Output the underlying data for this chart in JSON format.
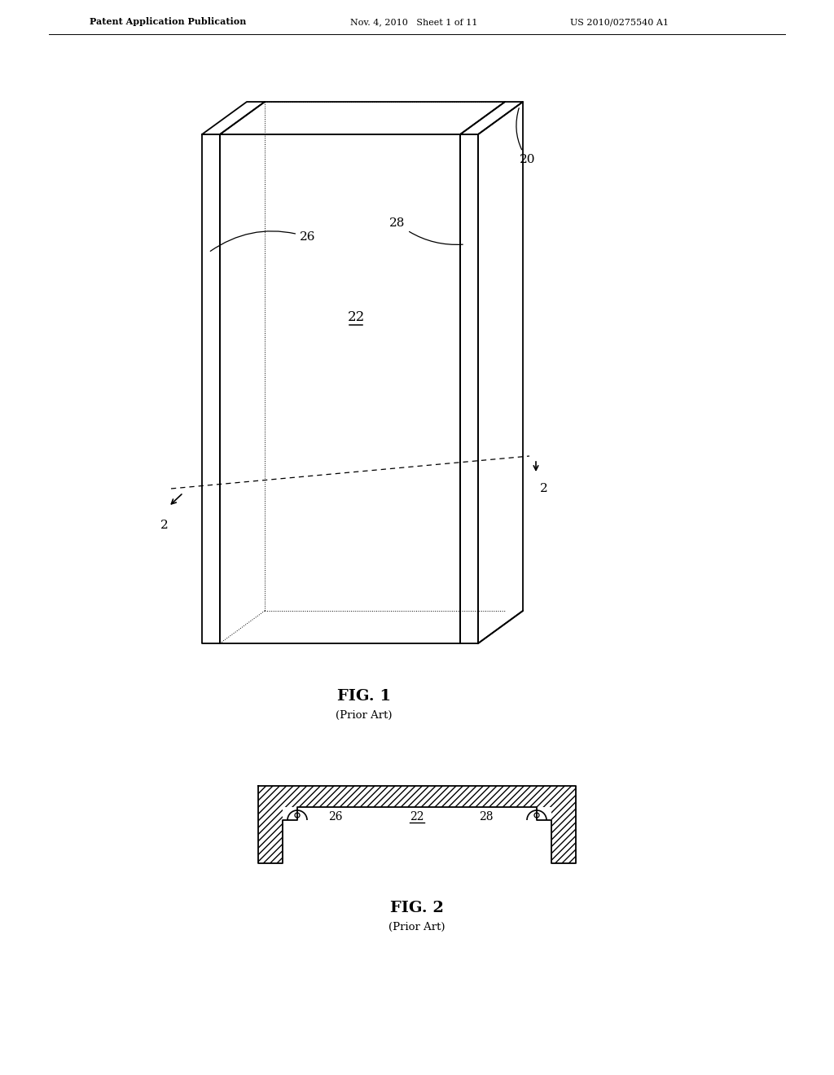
{
  "bg_color": "#ffffff",
  "header_left": "Patent Application Publication",
  "header_mid": "Nov. 4, 2010   Sheet 1 of 11",
  "header_right": "US 2010/0275540 A1",
  "fig1_title": "FIG. 1",
  "fig1_subtitle": "(Prior Art)",
  "fig2_title": "FIG. 2",
  "fig2_subtitle": "(Prior Art)",
  "label_20": "20",
  "label_22": "22",
  "label_26": "26",
  "label_28": "28",
  "label_2": "2",
  "line_color": "#000000"
}
